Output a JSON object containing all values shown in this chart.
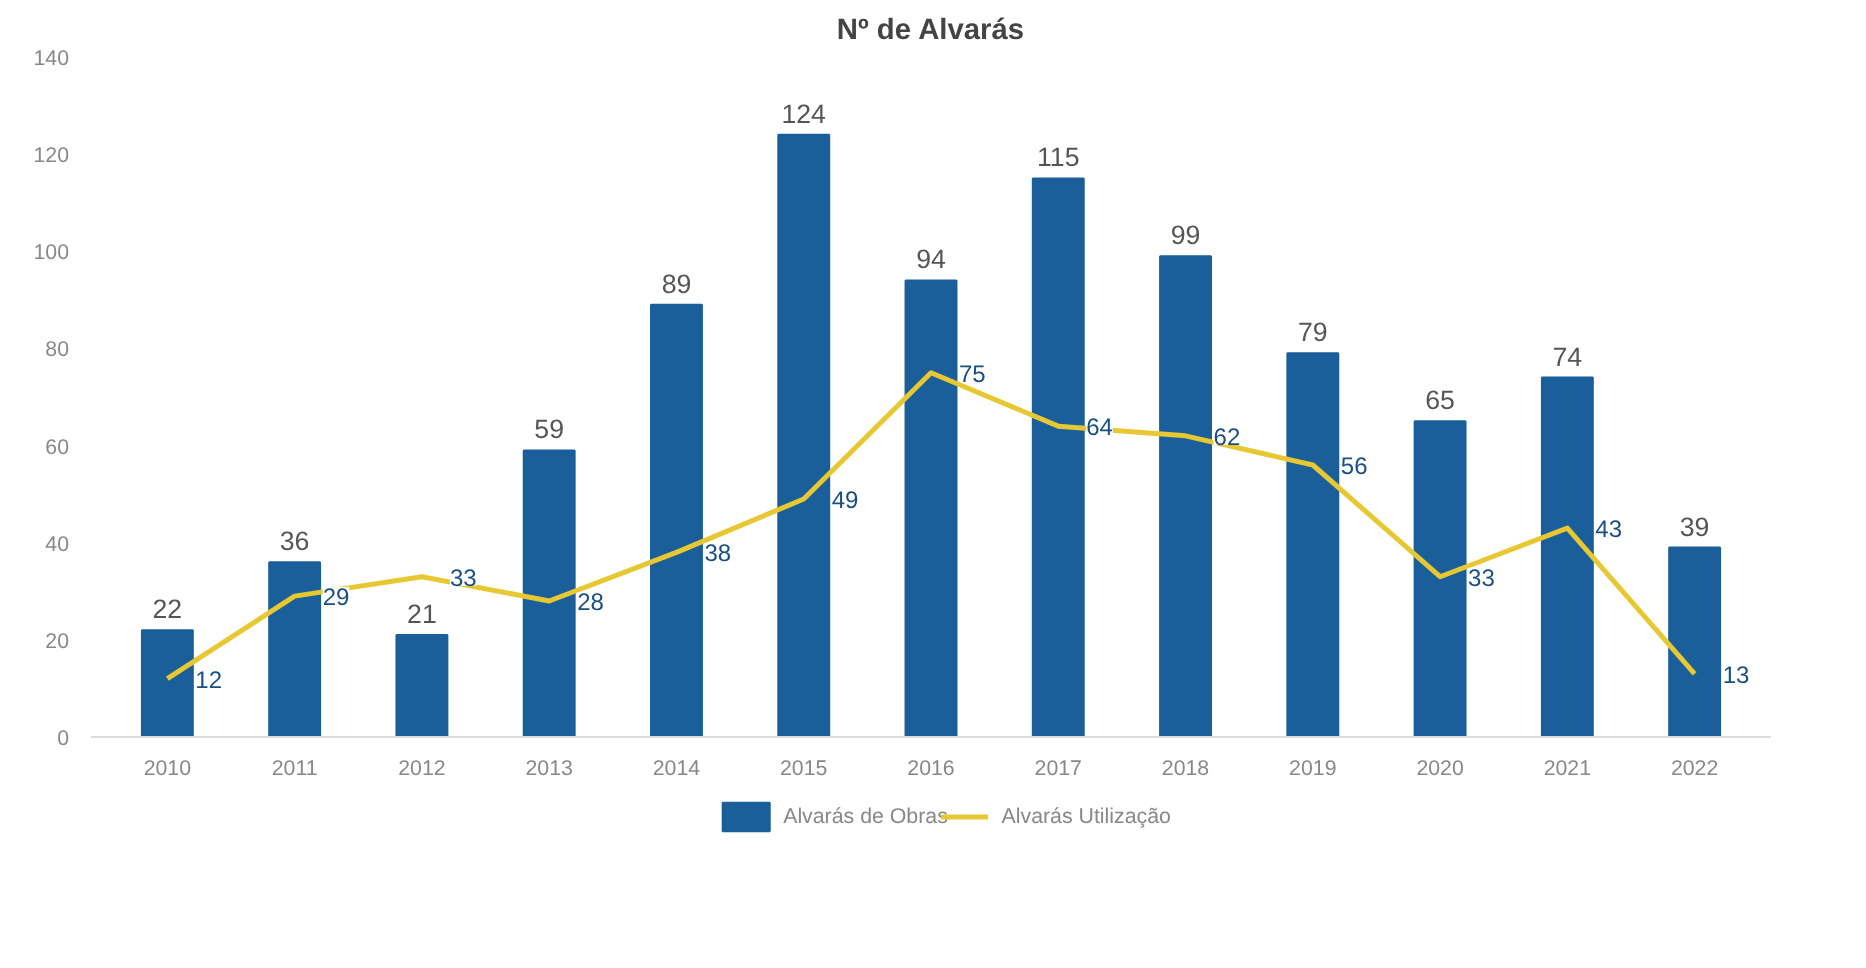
{
  "chart_data": {
    "type": "bar",
    "title": "Nº de Alvarás",
    "categories": [
      "2010",
      "2011",
      "2012",
      "2013",
      "2014",
      "2015",
      "2016",
      "2017",
      "2018",
      "2019",
      "2020",
      "2021",
      "2022"
    ],
    "series": [
      {
        "name": "Alvarás de Obras",
        "color": "#1a5e9a",
        "values": [
          22,
          36,
          21,
          59,
          89,
          124,
          94,
          115,
          99,
          79,
          65,
          74,
          39
        ]
      },
      {
        "name": "Alvarás Utilização",
        "type": "line",
        "color": "#e8c832",
        "values": [
          12,
          29,
          33,
          28,
          38,
          49,
          75,
          64,
          62,
          56,
          33,
          43,
          13
        ]
      }
    ],
    "ylim": [
      0,
      140
    ],
    "yticks": [
      0,
      20,
      40,
      60,
      80,
      100,
      120,
      140
    ],
    "grid": false,
    "legend": "bottom",
    "data_labels": true,
    "line_style": "solid"
  }
}
